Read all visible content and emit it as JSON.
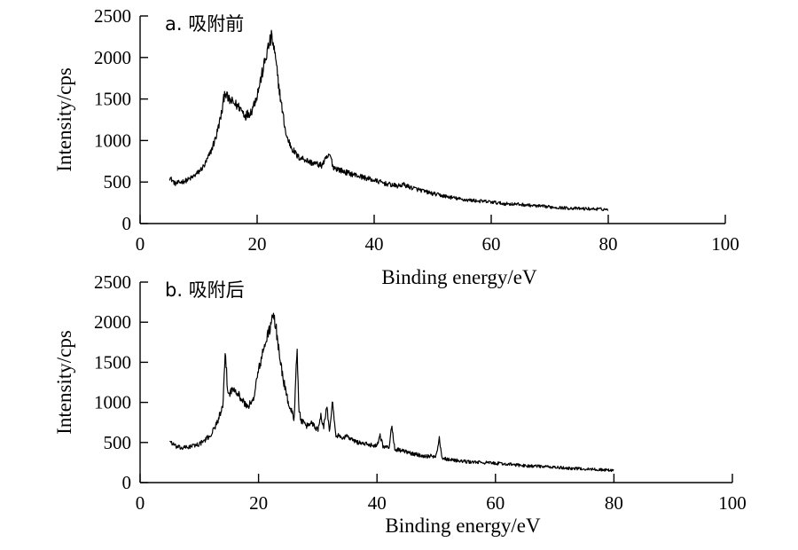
{
  "chart_data": [
    {
      "type": "line",
      "title": "a. 吸附前",
      "xlabel": "Binding energy/eV",
      "ylabel": "Intensity/cps",
      "xlim": [
        0,
        100
      ],
      "ylim": [
        0,
        2500
      ],
      "xticks": [
        0,
        20,
        40,
        60,
        80,
        100
      ],
      "yticks": [
        0,
        500,
        1000,
        1500,
        2000,
        2500
      ],
      "xtick_labels": [
        "0",
        "20",
        "40",
        "60",
        "80",
        "100"
      ],
      "ytick_labels": [
        "0",
        "500",
        "1000",
        "1500",
        "2000",
        "2500"
      ],
      "grid": false,
      "series": [
        {
          "name": "吸附前",
          "x": [
            5,
            6,
            7,
            8,
            9,
            10,
            11,
            12,
            13,
            14,
            14.5,
            15,
            16,
            17,
            18,
            19,
            20,
            21,
            22,
            22.5,
            23,
            24,
            25,
            26,
            27,
            28,
            29,
            30,
            31,
            32,
            32.5,
            33,
            34,
            35,
            36,
            38,
            40,
            42,
            44,
            45,
            46,
            48,
            50,
            52,
            55,
            58,
            60,
            62,
            65,
            68,
            70,
            72,
            75,
            78,
            80
          ],
          "y": [
            560,
            480,
            500,
            520,
            560,
            620,
            700,
            850,
            1050,
            1350,
            1600,
            1500,
            1450,
            1400,
            1300,
            1350,
            1550,
            1850,
            2150,
            2250,
            2050,
            1500,
            1050,
            900,
            800,
            780,
            740,
            720,
            700,
            800,
            820,
            680,
            650,
            620,
            600,
            560,
            520,
            480,
            450,
            470,
            440,
            400,
            360,
            330,
            290,
            270,
            260,
            240,
            230,
            210,
            200,
            190,
            180,
            175,
            170
          ]
        }
      ]
    },
    {
      "type": "line",
      "title": "b. 吸附后",
      "xlabel": "Binding energy/eV",
      "ylabel": "Intensity/cps",
      "xlim": [
        0,
        100
      ],
      "ylim": [
        0,
        2500
      ],
      "xticks": [
        0,
        20,
        40,
        60,
        80,
        100
      ],
      "yticks": [
        0,
        500,
        1000,
        1500,
        2000,
        2500
      ],
      "xtick_labels": [
        "0",
        "20",
        "40",
        "60",
        "80",
        "100"
      ],
      "ytick_labels": [
        "0",
        "500",
        "1000",
        "1500",
        "2000",
        "2500"
      ],
      "grid": false,
      "series": [
        {
          "name": "吸附后",
          "x": [
            5,
            6,
            7,
            8,
            9,
            10,
            11,
            12,
            13,
            14,
            14.4,
            14.8,
            15.5,
            16,
            17,
            18,
            19,
            20,
            21,
            22,
            22.5,
            23,
            24,
            25,
            26,
            26.5,
            26.8,
            27.2,
            28,
            29,
            30,
            30.5,
            31,
            31.5,
            32,
            32.5,
            33,
            34,
            35,
            36,
            38,
            40,
            40.5,
            41,
            42,
            42.5,
            43,
            44,
            46,
            48,
            50,
            50.5,
            51,
            52,
            55,
            58,
            60,
            62,
            65,
            68,
            70,
            72,
            75,
            78,
            80
          ],
          "y": [
            520,
            450,
            430,
            440,
            460,
            480,
            530,
            600,
            750,
            950,
            1650,
            1100,
            1150,
            1180,
            1050,
            950,
            1000,
            1400,
            1700,
            1950,
            2080,
            1900,
            1350,
            1000,
            800,
            1700,
            900,
            780,
            700,
            750,
            650,
            850,
            700,
            950,
            650,
            1050,
            600,
            560,
            580,
            520,
            480,
            460,
            600,
            460,
            430,
            700,
            420,
            400,
            360,
            330,
            330,
            560,
            310,
            290,
            260,
            250,
            240,
            230,
            210,
            200,
            190,
            180,
            170,
            160,
            150
          ]
        }
      ]
    }
  ]
}
